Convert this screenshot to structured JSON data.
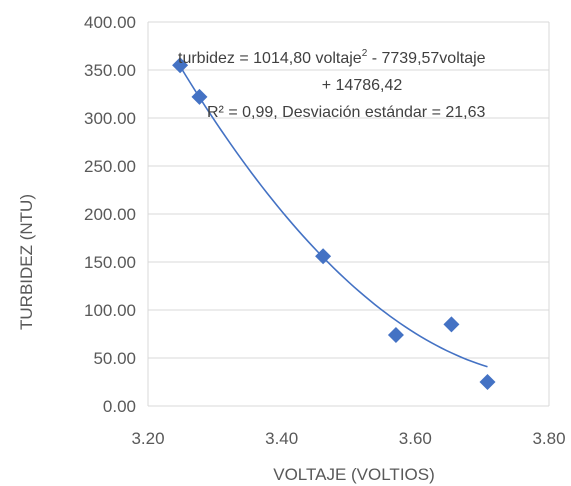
{
  "chart_data": {
    "type": "scatter",
    "xlabel": "VOLTAJE (VOLTIOS)",
    "ylabel": "TURBIDEZ (NTU)",
    "xlim": [
      3.2,
      3.8
    ],
    "ylim": [
      0,
      400
    ],
    "x_ticks": [
      "3.20",
      "3.40",
      "3.60",
      "3.80"
    ],
    "y_ticks": [
      "0.00",
      "50.00",
      "100.00",
      "150.00",
      "200.00",
      "250.00",
      "300.00",
      "350.00",
      "400.00"
    ],
    "grid": "horizontal",
    "points": [
      {
        "x": 3.248,
        "y": 355
      },
      {
        "x": 3.277,
        "y": 322
      },
      {
        "x": 3.462,
        "y": 156
      },
      {
        "x": 3.571,
        "y": 74
      },
      {
        "x": 3.654,
        "y": 85
      },
      {
        "x": 3.708,
        "y": 25
      }
    ],
    "trendline": {
      "type": "polynomial",
      "coefficients": [
        1014.8,
        -7739.57,
        14786.42
      ],
      "x_range": [
        3.248,
        3.708
      ],
      "color": "#4472C4"
    },
    "marker_color": "#4472C4",
    "annotation": {
      "line1_a": "turbidez = 1014,80 voltaje",
      "line1_sup": "2",
      "line1_b": " - 7739,57voltaje",
      "line2": "+ 14786,42",
      "line3": "R² = 0,99, Desviación estándar = 21,63"
    }
  }
}
